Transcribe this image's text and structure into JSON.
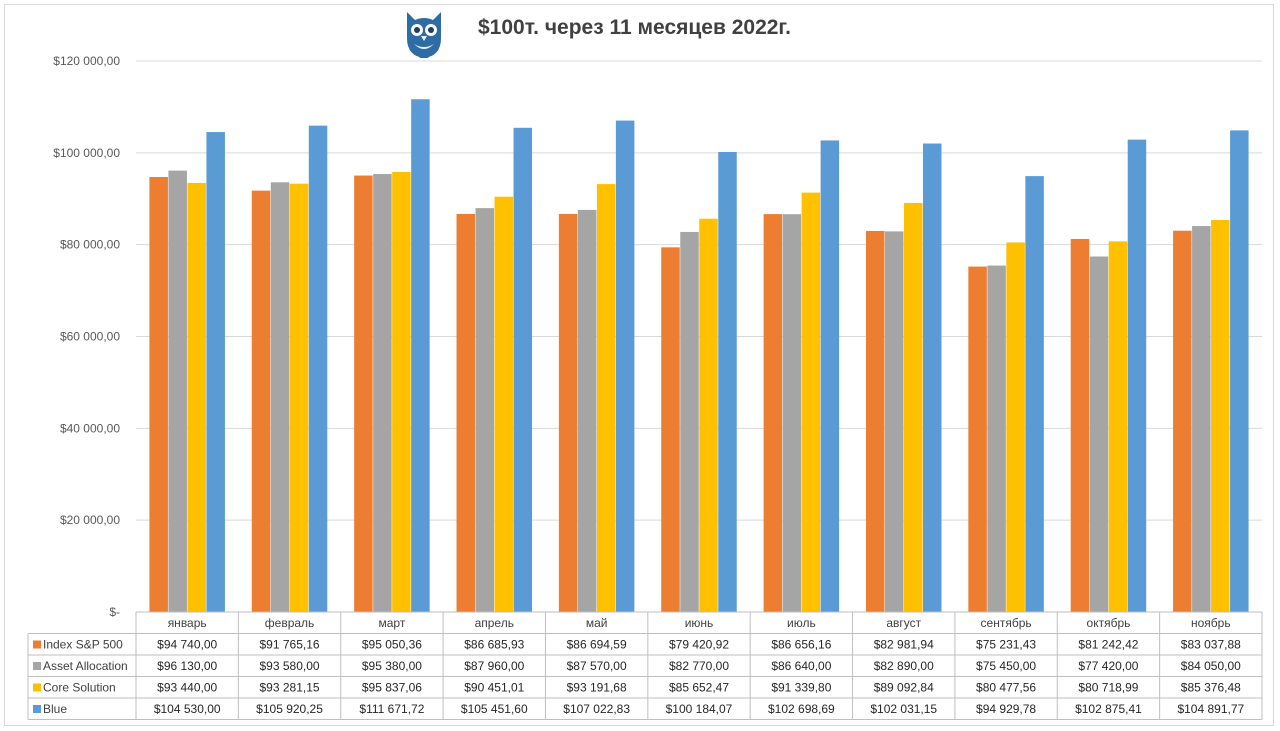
{
  "chart_data": {
    "type": "bar",
    "title": "$100т. через 11 месяцев 2022г.",
    "categories": [
      "январь",
      "февраль",
      "март",
      "апрель",
      "май",
      "июнь",
      "июль",
      "август",
      "сентябрь",
      "октябрь",
      "ноябрь"
    ],
    "ylim": [
      0,
      120000
    ],
    "yticks": [
      {
        "value": 0,
        "label": "$-"
      },
      {
        "value": 20000,
        "label": "$20 000,00"
      },
      {
        "value": 40000,
        "label": "$40 000,00"
      },
      {
        "value": 60000,
        "label": "$60 000,00"
      },
      {
        "value": 80000,
        "label": "$80 000,00"
      },
      {
        "value": 100000,
        "label": "$100 000,00"
      },
      {
        "value": 120000,
        "label": "$120 000,00"
      }
    ],
    "grid": true,
    "legend": "data-table",
    "series": [
      {
        "name": "Index S&P 500",
        "color": "#ED7D31",
        "values": [
          94740.0,
          91765.16,
          95050.36,
          86685.93,
          86694.59,
          79420.92,
          86656.16,
          82981.94,
          75231.43,
          81242.42,
          83037.88
        ],
        "labels": [
          "$94 740,00",
          "$91 765,16",
          "$95 050,36",
          "$86 685,93",
          "$86 694,59",
          "$79 420,92",
          "$86 656,16",
          "$82 981,94",
          "$75 231,43",
          "$81 242,42",
          "$83 037,88"
        ]
      },
      {
        "name": "Asset Allocation",
        "color": "#A5A5A5",
        "values": [
          96130.0,
          93580.0,
          95380.0,
          87960.0,
          87570.0,
          82770.0,
          86640.0,
          82890.0,
          75450.0,
          77420.0,
          84050.0
        ],
        "labels": [
          "$96 130,00",
          "$93 580,00",
          "$95 380,00",
          "$87 960,00",
          "$87 570,00",
          "$82 770,00",
          "$86 640,00",
          "$82 890,00",
          "$75 450,00",
          "$77 420,00",
          "$84 050,00"
        ]
      },
      {
        "name": "Core Solution",
        "color": "#FFC000",
        "values": [
          93440.0,
          93281.15,
          95837.06,
          90451.01,
          93191.68,
          85652.47,
          91339.8,
          89092.84,
          80477.56,
          80718.99,
          85376.48
        ],
        "labels": [
          "$93 440,00",
          "$93 281,15",
          "$95 837,06",
          "$90 451,01",
          "$93 191,68",
          "$85 652,47",
          "$91 339,80",
          "$89 092,84",
          "$80 477,56",
          "$80 718,99",
          "$85 376,48"
        ]
      },
      {
        "name": "Blue",
        "color": "#5B9BD5",
        "values": [
          104530.0,
          105920.25,
          111671.72,
          105451.6,
          107022.83,
          100184.07,
          102698.69,
          102031.15,
          94929.78,
          102875.41,
          104891.77
        ],
        "labels": [
          "$104 530,00",
          "$105 920,25",
          "$111 671,72",
          "$105 451,60",
          "$107 022,83",
          "$100 184,07",
          "$102 698,69",
          "$102 031,15",
          "$94 929,78",
          "$102 875,41",
          "$104 891,77"
        ]
      }
    ]
  },
  "logo": {
    "icon": "owl-icon",
    "color": "#2E6DA4"
  }
}
